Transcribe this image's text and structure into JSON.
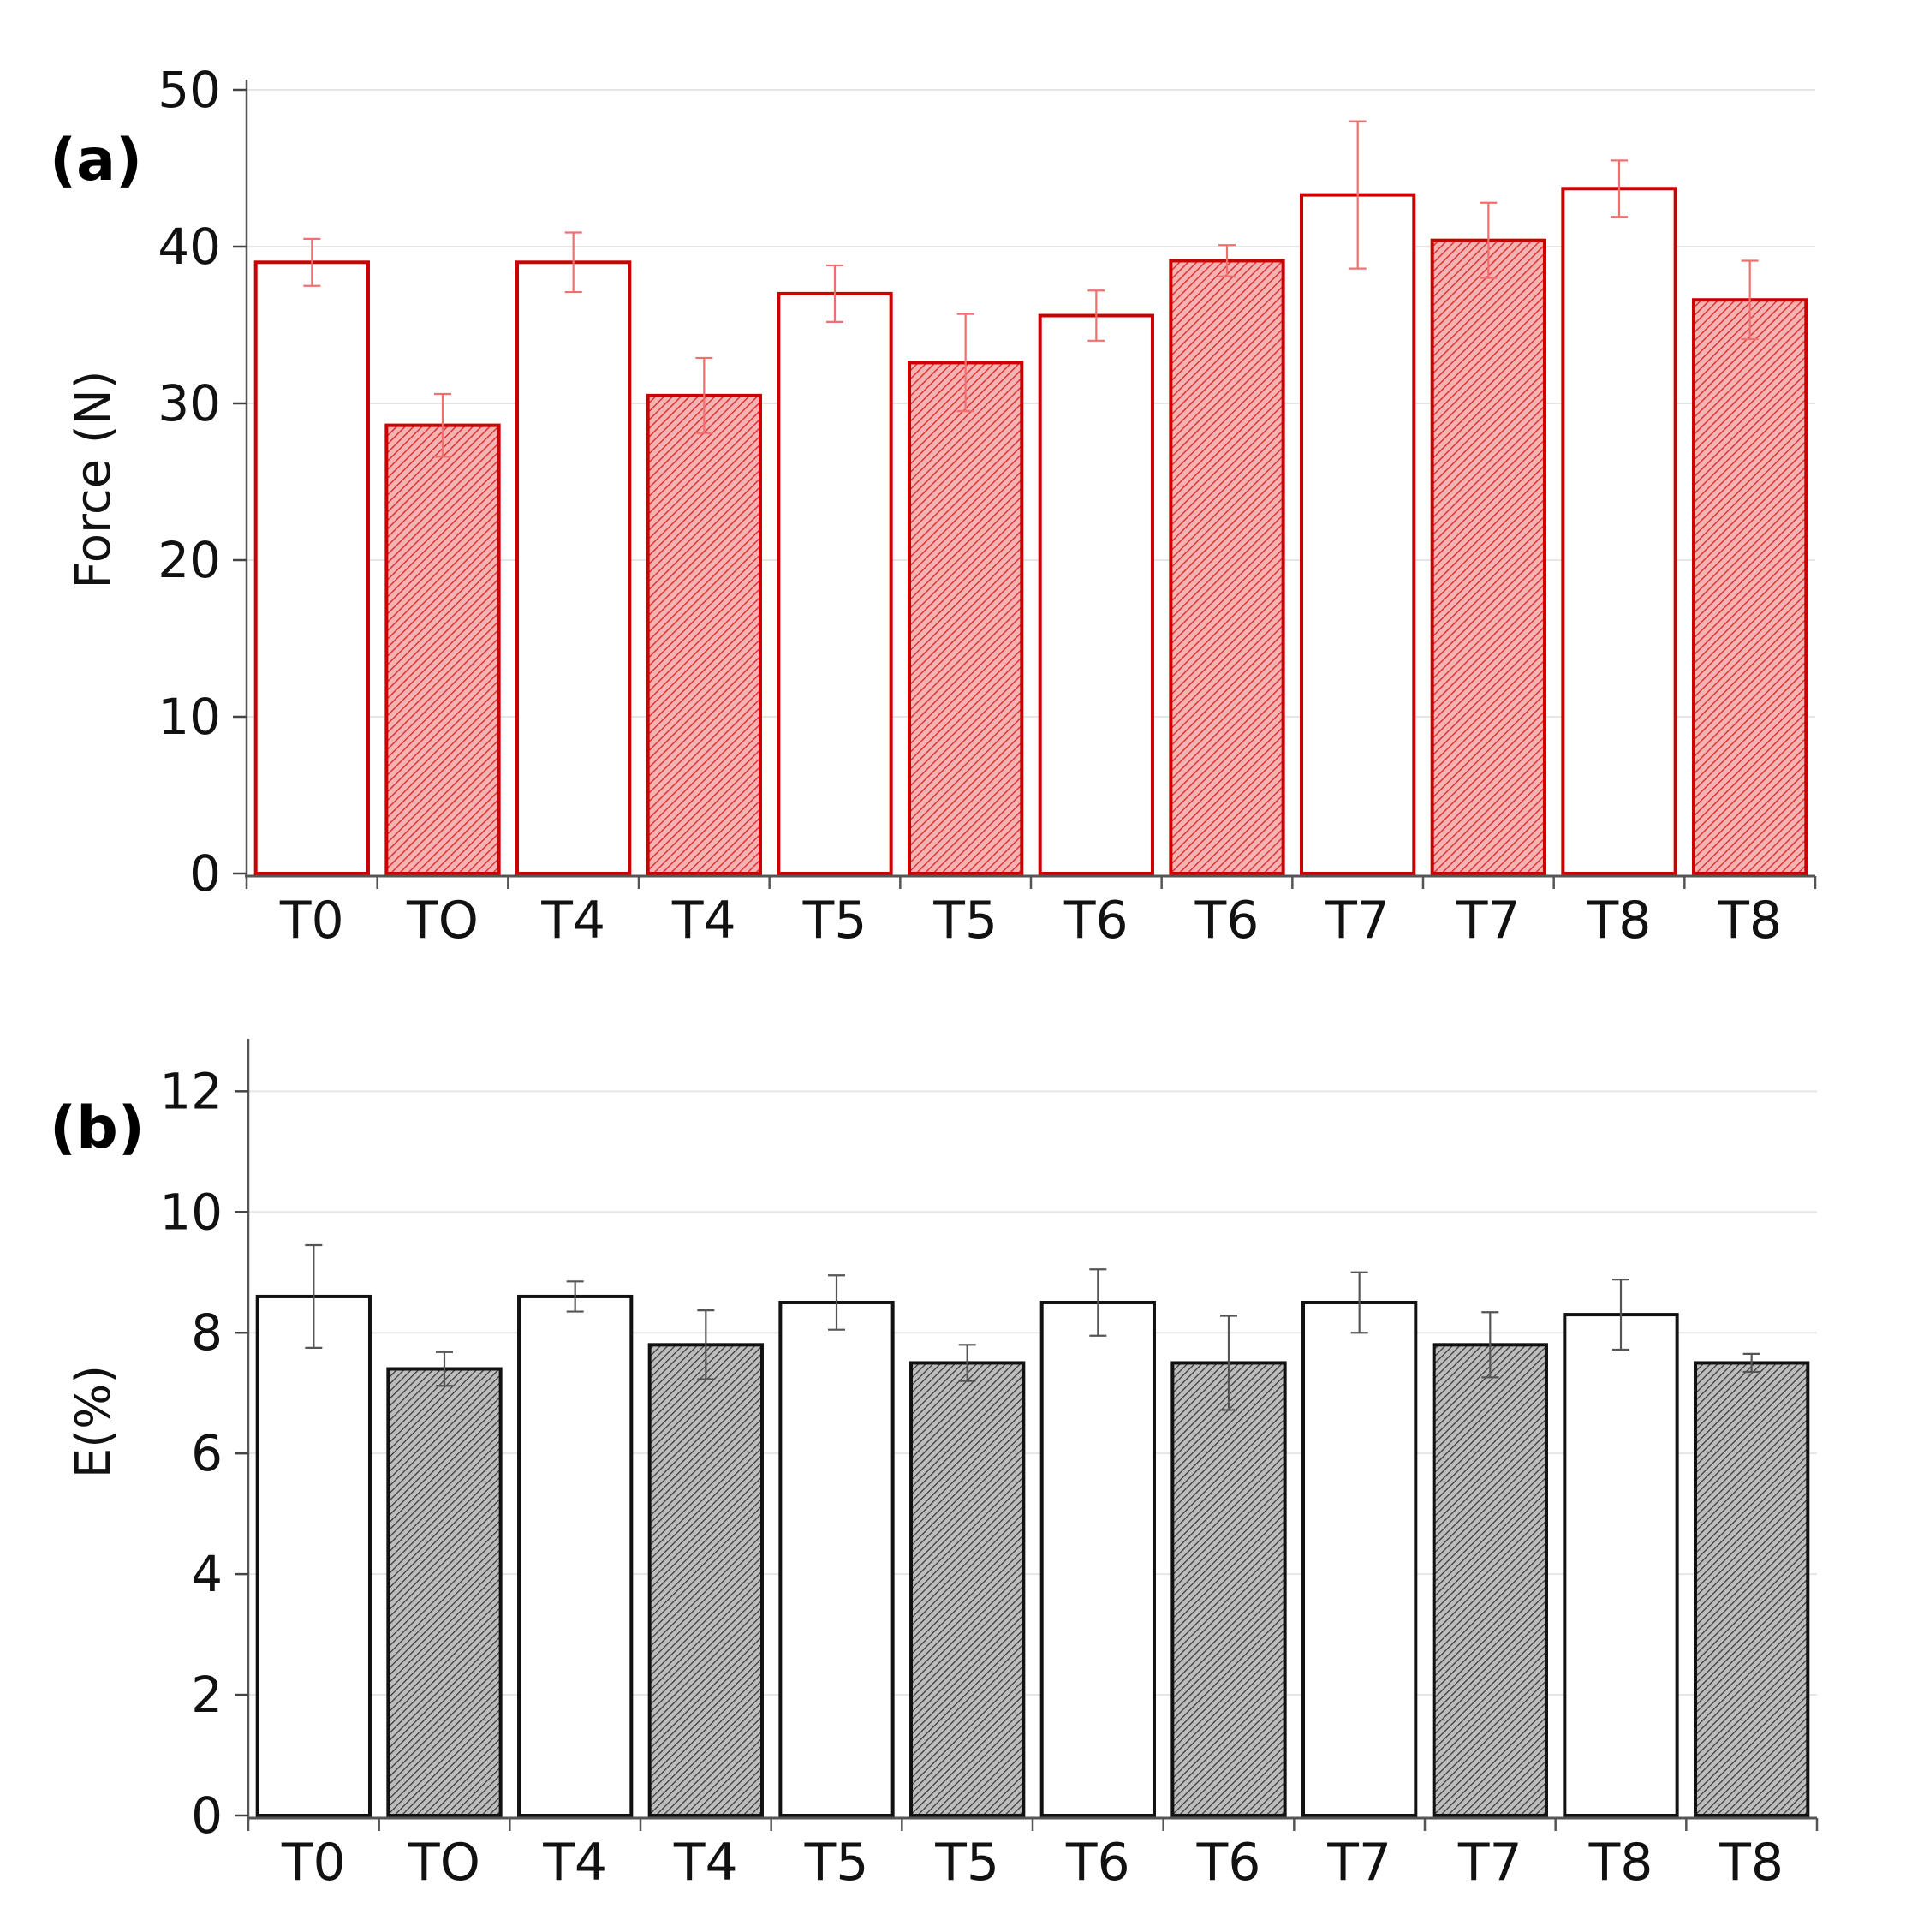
{
  "chart_data": [
    {
      "type": "bar",
      "panel_label": "(a)",
      "ylabel": "Force (N)",
      "xlabel": "",
      "ylim": [
        0,
        50
      ],
      "yticks": [
        0,
        10,
        20,
        30,
        40,
        50
      ],
      "grid": true,
      "categories": [
        "T0",
        "TO",
        "T4",
        "T4",
        "T5",
        "T5",
        "T6",
        "T6",
        "T7",
        "T7",
        "T8",
        "T8"
      ],
      "values": [
        39.0,
        28.6,
        39.0,
        30.5,
        37.0,
        32.6,
        35.6,
        39.1,
        43.3,
        40.4,
        43.7,
        36.6
      ],
      "errors": [
        1.5,
        2.0,
        1.9,
        2.4,
        1.8,
        3.1,
        1.6,
        1.0,
        4.7,
        2.4,
        1.8,
        2.5
      ],
      "fill": [
        "hollow",
        "hatched",
        "hollow",
        "hatched",
        "hollow",
        "hatched",
        "hollow",
        "hatched",
        "hollow",
        "hatched",
        "hollow",
        "hatched"
      ],
      "color": "#cc0000",
      "error_color": "#f07070"
    },
    {
      "type": "bar",
      "panel_label": "(b)",
      "ylabel": "E(%)",
      "xlabel": "",
      "ylim": [
        0,
        12.7
      ],
      "yticks": [
        0,
        2,
        4,
        6,
        8,
        10,
        12
      ],
      "grid": true,
      "categories": [
        "T0",
        "TO",
        "T4",
        "T4",
        "T5",
        "T5",
        "T6",
        "T6",
        "T7",
        "T7",
        "T8",
        "T8"
      ],
      "values": [
        8.6,
        7.4,
        8.6,
        7.8,
        8.5,
        7.5,
        8.5,
        7.5,
        8.5,
        7.8,
        8.3,
        7.5
      ],
      "errors": [
        0.85,
        0.28,
        0.25,
        0.57,
        0.45,
        0.3,
        0.55,
        0.78,
        0.5,
        0.54,
        0.58,
        0.15
      ],
      "fill": [
        "hollow",
        "hatched",
        "hollow",
        "hatched",
        "hollow",
        "hatched",
        "hollow",
        "hatched",
        "hollow",
        "hatched",
        "hollow",
        "hatched"
      ],
      "color": "#111111",
      "error_color": "#555555"
    }
  ]
}
